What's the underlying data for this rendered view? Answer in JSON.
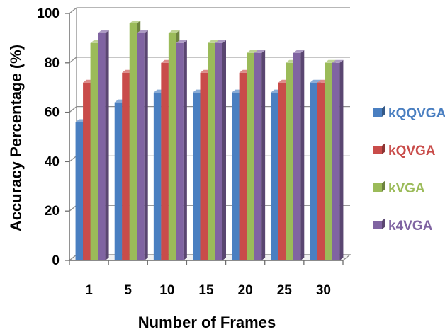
{
  "chart_data": {
    "type": "bar",
    "categories": [
      "1",
      "5",
      "10",
      "15",
      "20",
      "25",
      "30"
    ],
    "series": [
      {
        "name": "kQQVGA",
        "values": [
          56,
          64,
          68,
          68,
          68,
          68,
          72
        ]
      },
      {
        "name": "kQVGA",
        "values": [
          72,
          76,
          80,
          76,
          76,
          72,
          72
        ]
      },
      {
        "name": "kVGA",
        "values": [
          88,
          96,
          92,
          88,
          84,
          80,
          80
        ]
      },
      {
        "name": "k4VGA",
        "values": [
          92,
          92,
          88,
          88,
          84,
          84,
          80
        ]
      }
    ],
    "title": "",
    "xlabel": "Number of Frames",
    "ylabel": "Accuracy Percentage (%)",
    "ylim": [
      0,
      100
    ],
    "yticks": [
      "0",
      "20",
      "40",
      "60",
      "80",
      "100"
    ],
    "grid": true,
    "legend_position": "right",
    "colors": [
      "#4a7fc1",
      "#c94c4a",
      "#9bbb59",
      "#8064a2"
    ]
  }
}
